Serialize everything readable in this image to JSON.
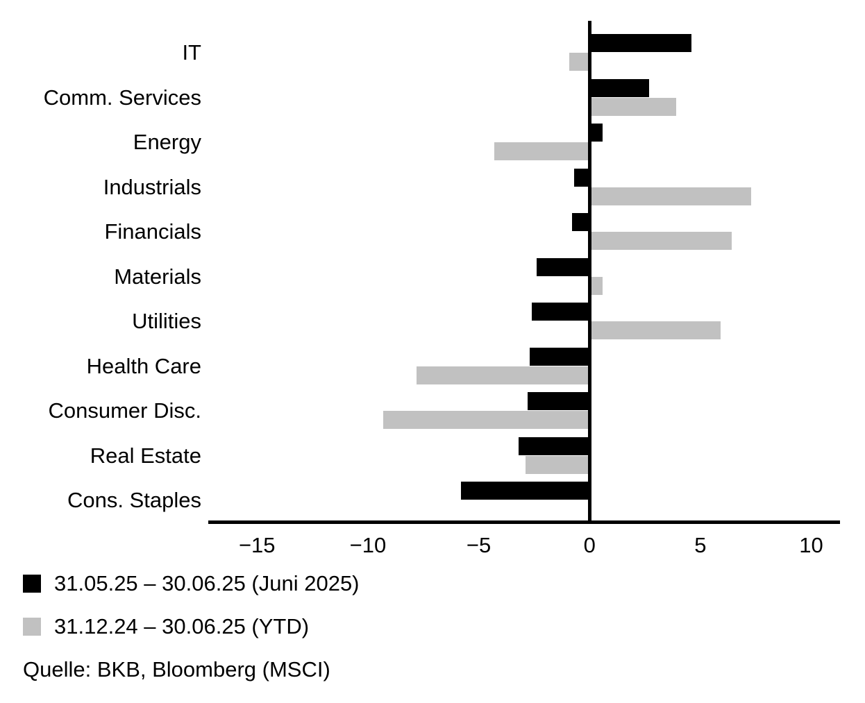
{
  "chart_data": {
    "type": "bar",
    "orientation": "horizontal",
    "title": "",
    "xlabel": "",
    "ylabel": "",
    "categories": [
      "IT",
      "Comm. Services",
      "Energy",
      "Industrials",
      "Financials",
      "Materials",
      "Utilities",
      "Health Care",
      "Consumer Disc.",
      "Real Estate",
      "Cons. Staples"
    ],
    "series": [
      {
        "name": "31.05.25 – 30.06.25 (Juni 2025)",
        "color": "#000000",
        "values": [
          4.6,
          2.7,
          0.6,
          -0.7,
          -0.8,
          -2.4,
          -2.6,
          -2.7,
          -2.8,
          -3.2,
          -5.8
        ]
      },
      {
        "name": "31.12.24 – 30.06.25 (YTD)",
        "color": "#c1c1c1",
        "values": [
          -0.9,
          3.9,
          -4.3,
          7.3,
          6.4,
          0.6,
          5.9,
          -7.8,
          -9.3,
          -2.9,
          0
        ]
      }
    ],
    "xlim": [
      -17.2,
      11.3
    ],
    "xticks": [
      -15,
      -10,
      -5,
      0,
      5,
      10
    ],
    "grid": false,
    "legend_position": "bottom-left"
  },
  "source_note": "Quelle: BKB, Bloomberg (MSCI)",
  "colors": {
    "axis": "#000000",
    "bar_month": "#000000",
    "bar_ytd": "#c1c1c1",
    "text": "#000000",
    "background": "#ffffff"
  }
}
